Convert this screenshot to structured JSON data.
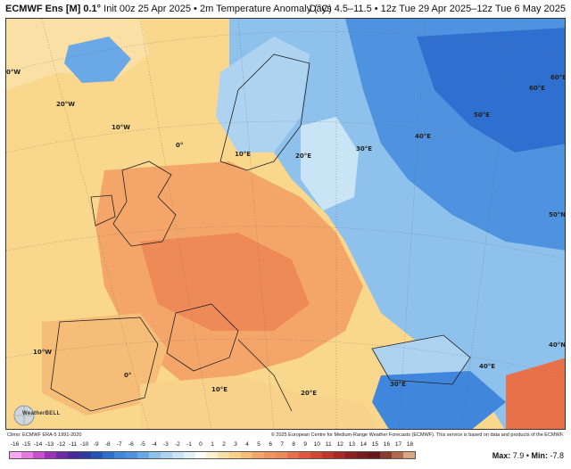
{
  "header": {
    "title": "ECMWF Ens [M] 0.1°",
    "subtitle": "Init 00z 25 Apr 2025 • 2m Temperature Anomaly (°C)",
    "valid": "Days 4.5–11.5 • 12z Tue 29 Apr 2025–12z Tue 6 May 2025"
  },
  "map": {
    "background_color": "#f9d78c",
    "grid_labels": [
      "0°W",
      "20°W",
      "10°W",
      "0°",
      "10°E",
      "20°E",
      "30°E",
      "40°E",
      "50°E",
      "60°E",
      "60°E",
      "50°N",
      "40°N",
      "10°W",
      "0°",
      "10°E",
      "20°E",
      "30°E",
      "40°E"
    ],
    "colors": {
      "warm_light": "#f8d28a",
      "warm_mid": "#f4a66a",
      "warm_strong": "#ee8a57",
      "cold_light": "#c9e4f5",
      "cold_mid": "#8ec1ec",
      "cold_strong": "#4f93e0",
      "cold_deep": "#2f6fd0"
    }
  },
  "logo": {
    "text": "WeatherBELL"
  },
  "credits": {
    "left": "Climo: ECMWF ERA-5 1991-2020",
    "right": "© 2025 European Centre for Medium-Range Weather Forecasts (ECMWF). This service is based on data and products of the ECMWF."
  },
  "scale": {
    "ticks": [
      "-16",
      "-15",
      "-14",
      "-13",
      "-12",
      "-11",
      "-10",
      "-9",
      "-8",
      "-7",
      "-6",
      "-5",
      "-4",
      "-3",
      "-2",
      "-1",
      "0",
      "1",
      "2",
      "3",
      "4",
      "5",
      "6",
      "7",
      "8",
      "9",
      "10",
      "11",
      "12",
      "13",
      "14",
      "15",
      "16",
      "17",
      "18"
    ],
    "colors": [
      "#f7a8f2",
      "#e77ae0",
      "#c94fcc",
      "#9b34b8",
      "#6d2aa6",
      "#4a2a9a",
      "#2d3b9e",
      "#2552b5",
      "#2f6fd0",
      "#3f86dc",
      "#4f93e0",
      "#6aa8e8",
      "#8ec1ec",
      "#aed3f1",
      "#c9e4f5",
      "#e3f1f9",
      "#ffffff",
      "#fdf0cf",
      "#fbe0a6",
      "#f8d28a",
      "#f6bd78",
      "#f4a66a",
      "#f0955f",
      "#ee8a57",
      "#e8714a",
      "#df5a3d",
      "#d44634",
      "#c1362c",
      "#a82a27",
      "#8f2022",
      "#7a1a1e",
      "#65181c",
      "#8a3b2d",
      "#b06a4c",
      "#d7a587"
    ]
  },
  "maxmin": {
    "max_label": "Max:",
    "max": "7.9",
    "min_label": "Min:",
    "min": "-7.8"
  }
}
